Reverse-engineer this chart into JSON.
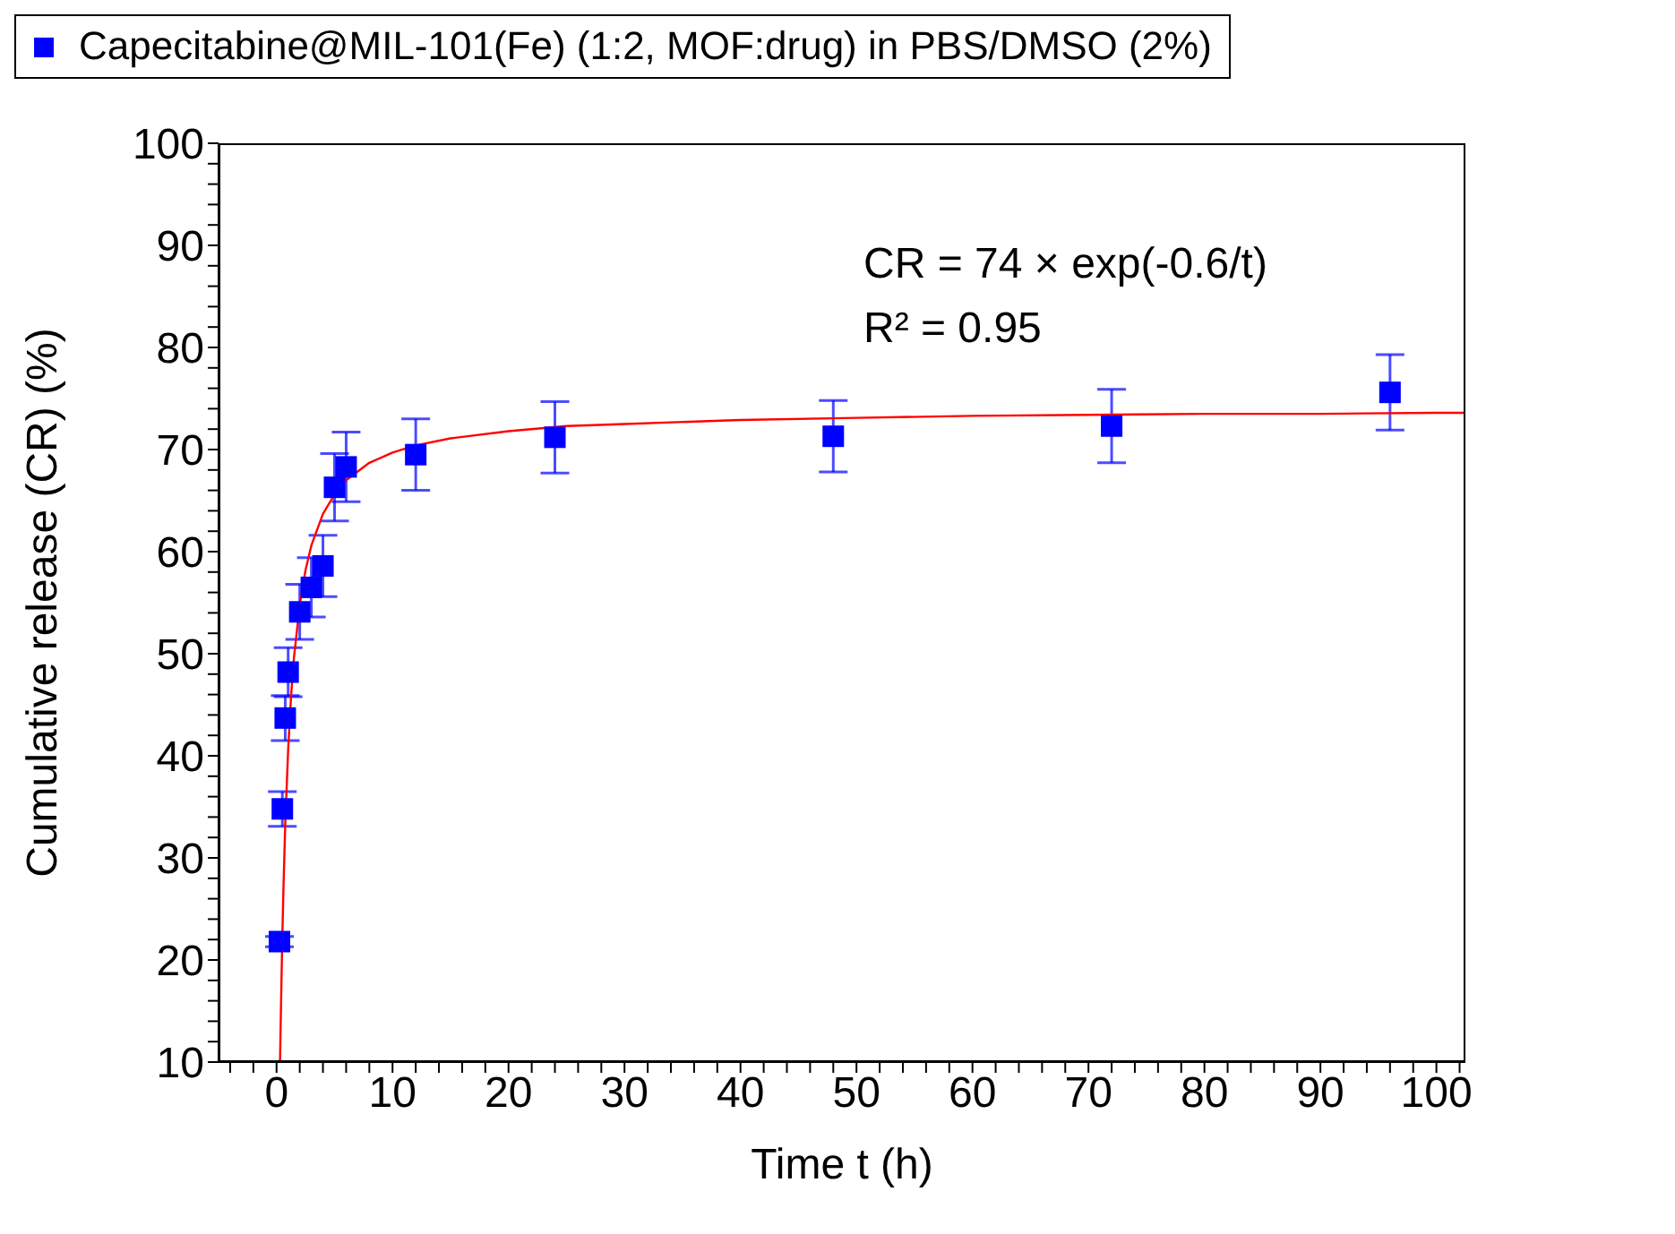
{
  "chart_data": {
    "type": "scatter",
    "xlabel": "Time t (h)",
    "ylabel": "Cumulative release (CR) (%)",
    "annotations": [
      "CR = 74 × exp(-0.6/t)",
      "R² = 0.95"
    ],
    "xlim": [
      -5,
      102.5
    ],
    "ylim": [
      10,
      100
    ],
    "xticks": [
      {
        "value": -4,
        "label": null
      },
      {
        "value": -2,
        "label": null
      },
      0,
      {
        "value": 2,
        "label": null
      },
      {
        "value": 4,
        "label": null
      },
      {
        "value": 6,
        "label": null
      },
      {
        "value": 8,
        "label": null
      },
      10,
      {
        "value": 12,
        "label": null
      },
      {
        "value": 14,
        "label": null
      },
      {
        "value": 16,
        "label": null
      },
      {
        "value": 18,
        "label": null
      },
      20,
      {
        "value": 22,
        "label": null
      },
      {
        "value": 24,
        "label": null
      },
      {
        "value": 26,
        "label": null
      },
      {
        "value": 28,
        "label": null
      },
      30,
      {
        "value": 32,
        "label": null
      },
      {
        "value": 34,
        "label": null
      },
      {
        "value": 36,
        "label": null
      },
      {
        "value": 38,
        "label": null
      },
      40,
      {
        "value": 42,
        "label": null
      },
      {
        "value": 44,
        "label": null
      },
      {
        "value": 46,
        "label": null
      },
      {
        "value": 48,
        "label": null
      },
      50,
      {
        "value": 52,
        "label": null
      },
      {
        "value": 54,
        "label": null
      },
      {
        "value": 56,
        "label": null
      },
      {
        "value": 58,
        "label": null
      },
      60,
      {
        "value": 62,
        "label": null
      },
      {
        "value": 64,
        "label": null
      },
      {
        "value": 66,
        "label": null
      },
      {
        "value": 68,
        "label": null
      },
      70,
      {
        "value": 72,
        "label": null
      },
      {
        "value": 74,
        "label": null
      },
      {
        "value": 76,
        "label": null
      },
      {
        "value": 78,
        "label": null
      },
      80,
      {
        "value": 82,
        "label": null
      },
      {
        "value": 84,
        "label": null
      },
      {
        "value": 86,
        "label": null
      },
      {
        "value": 88,
        "label": null
      },
      90,
      {
        "value": 92,
        "label": null
      },
      {
        "value": 94,
        "label": null
      },
      {
        "value": 96,
        "label": null
      },
      {
        "value": 98,
        "label": null
      },
      100,
      {
        "value": 102,
        "label": null
      }
    ],
    "yticks": [
      10,
      {
        "value": 12,
        "label": null
      },
      {
        "value": 14,
        "label": null
      },
      {
        "value": 16,
        "label": null
      },
      {
        "value": 18,
        "label": null
      },
      20,
      {
        "value": 22,
        "label": null
      },
      {
        "value": 24,
        "label": null
      },
      {
        "value": 26,
        "label": null
      },
      {
        "value": 28,
        "label": null
      },
      30,
      {
        "value": 32,
        "label": null
      },
      {
        "value": 34,
        "label": null
      },
      {
        "value": 36,
        "label": null
      },
      {
        "value": 38,
        "label": null
      },
      40,
      {
        "value": 42,
        "label": null
      },
      {
        "value": 44,
        "label": null
      },
      {
        "value": 46,
        "label": null
      },
      {
        "value": 48,
        "label": null
      },
      50,
      {
        "value": 52,
        "label": null
      },
      {
        "value": 54,
        "label": null
      },
      {
        "value": 56,
        "label": null
      },
      {
        "value": 58,
        "label": null
      },
      60,
      {
        "value": 62,
        "label": null
      },
      {
        "value": 64,
        "label": null
      },
      {
        "value": 66,
        "label": null
      },
      {
        "value": 68,
        "label": null
      },
      70,
      {
        "value": 72,
        "label": null
      },
      {
        "value": 74,
        "label": null
      },
      {
        "value": 76,
        "label": null
      },
      {
        "value": 78,
        "label": null
      },
      80,
      {
        "value": 82,
        "label": null
      },
      {
        "value": 84,
        "label": null
      },
      {
        "value": 86,
        "label": null
      },
      {
        "value": 88,
        "label": null
      },
      90,
      {
        "value": 92,
        "label": null
      },
      {
        "value": 94,
        "label": null
      },
      {
        "value": 96,
        "label": null
      },
      {
        "value": 98,
        "label": null
      },
      100
    ],
    "grid": false,
    "legend": "top",
    "marker": "square",
    "series": [
      {
        "name": "Capecitabine@MIL-101(Fe) (1:2, MOF:drug) in PBS/DMSO (2%)",
        "type": "scatter",
        "color": "#0000ff",
        "x": [
          0.25,
          0.5,
          0.75,
          1,
          2,
          3,
          4,
          5,
          6,
          12,
          24,
          48,
          72,
          96
        ],
        "values": [
          21.8,
          34.8,
          43.7,
          48.2,
          54.1,
          56.5,
          58.6,
          66.3,
          68.3,
          69.5,
          71.2,
          71.3,
          72.3,
          75.6
        ],
        "errors": [
          0.5,
          1.7,
          2.2,
          2.4,
          2.7,
          2.9,
          3.0,
          3.3,
          3.4,
          3.5,
          3.5,
          3.5,
          3.6,
          3.7
        ]
      },
      {
        "type": "line",
        "color": "#ff0000",
        "marker": "none",
        "line_style": "solid",
        "x": [
          0.3,
          0.35,
          0.4,
          0.5,
          0.6,
          0.75,
          1,
          1.25,
          1.5,
          2,
          2.5,
          3,
          4,
          5,
          6,
          8,
          10,
          12,
          15,
          20,
          25,
          30,
          40,
          50,
          60,
          70,
          80,
          90,
          100,
          102.5
        ],
        "values": [
          10.0,
          13.3,
          16.5,
          22.3,
          27.2,
          33.3,
          40.6,
          45.8,
          49.6,
          54.8,
          58.2,
          60.6,
          63.7,
          65.6,
          67.0,
          68.7,
          69.7,
          70.4,
          71.1,
          71.8,
          72.3,
          72.5,
          72.9,
          73.1,
          73.3,
          73.4,
          73.5,
          73.5,
          73.6,
          73.6
        ]
      }
    ]
  }
}
